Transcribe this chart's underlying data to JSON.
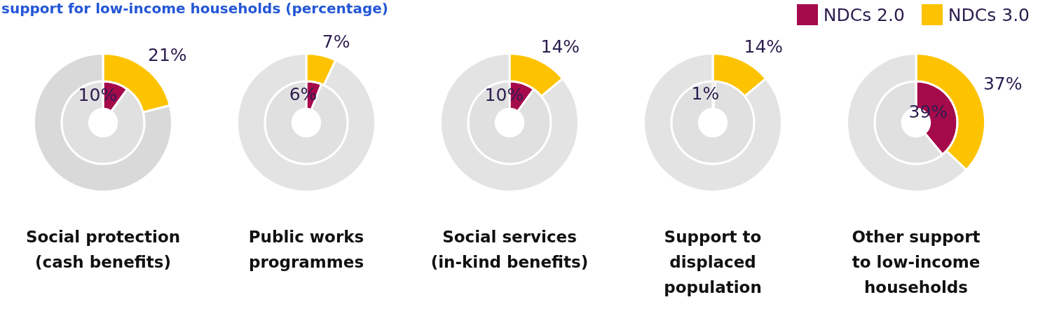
{
  "chart_data": [
    {
      "type": "donut",
      "subtitle": "support for low-income households (percentage)",
      "title": "Social protection\n(cash benefits)",
      "categories": [
        null,
        null
      ],
      "legend": "top right",
      "series": [
        {
          "name": "NDCs 2.0",
          "colors": [
            "#a50a4b",
            "#e0e0e0"
          ],
          "values": [
            10,
            90
          ],
          "value_labels": [
            "10%",
            null
          ]
        },
        {
          "name": "NDCs 3.0",
          "colors": [
            "#fdc300",
            "#d9d9d9"
          ],
          "values": [
            21,
            79
          ],
          "value_labels": [
            "21%",
            null
          ]
        }
      ]
    },
    {
      "type": "donut",
      "title": "Public works\nprogrammes",
      "categories": [
        null,
        null
      ],
      "series": [
        {
          "colors": [
            "#a50a4b",
            "#e0e0e0"
          ],
          "values": [
            6,
            94
          ],
          "value_labels": [
            "6%",
            null
          ]
        },
        {
          "colors": [
            "#fdc300",
            "#e3e3e3"
          ],
          "values": [
            7,
            93
          ],
          "value_labels": [
            "7%",
            null
          ]
        }
      ]
    },
    {
      "type": "donut",
      "title": "Social services\n(in-kind benefits)",
      "categories": [
        null,
        null
      ],
      "series": [
        {
          "colors": [
            "#a50a4b",
            "#e0e0e0"
          ],
          "values": [
            10,
            90
          ],
          "value_labels": [
            "10%",
            null
          ]
        },
        {
          "colors": [
            "#fdc300",
            "#e3e3e3"
          ],
          "values": [
            14,
            86
          ],
          "value_labels": [
            "14%",
            null
          ]
        }
      ]
    },
    {
      "type": "donut",
      "title": "Support to\ndisplaced\npopulation",
      "categories": [
        null,
        null
      ],
      "series": [
        {
          "colors": [
            "#a50a4b",
            "#e0e0e0"
          ],
          "values": [
            1,
            99
          ],
          "value_labels": [
            "1%",
            null
          ]
        },
        {
          "colors": [
            "#fdc300",
            "#e3e3e3"
          ],
          "values": [
            14,
            86
          ],
          "value_labels": [
            "14%",
            null
          ]
        }
      ]
    },
    {
      "type": "donut",
      "title": "Other support\nto low-income\nhouseholds",
      "categories": [
        null,
        null
      ],
      "series": [
        {
          "colors": [
            "#a50a4b",
            "#e0e0e0"
          ],
          "values": [
            39,
            61
          ],
          "value_labels": [
            "39%",
            null
          ]
        },
        {
          "colors": [
            "#fdc300",
            "#e3e3e3"
          ],
          "values": [
            37,
            63
          ],
          "value_labels": [
            "37%",
            null
          ]
        }
      ]
    }
  ]
}
